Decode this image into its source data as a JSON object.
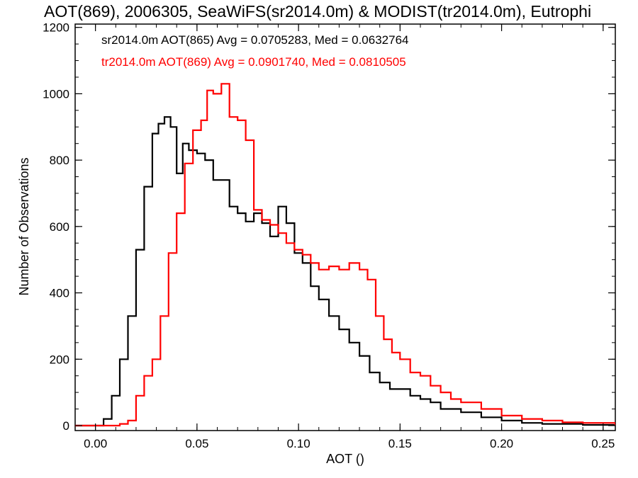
{
  "chart_data": {
    "type": "line",
    "title": "AOT(869), 2006305, SeaWiFS(sr2014.0m) & MODIST(tr2014.0m), Eutrophi",
    "xlabel": "AOT ()",
    "ylabel": "Number of Observations",
    "xlim": [
      -0.01,
      0.256
    ],
    "ylim": [
      -15,
      1210
    ],
    "xticks": [
      "0.00",
      "0.05",
      "0.10",
      "0.15",
      "0.20",
      "0.25"
    ],
    "xtick_values": [
      0.0,
      0.05,
      0.1,
      0.15,
      0.2,
      0.25
    ],
    "yticks": [
      "0",
      "200",
      "400",
      "600",
      "800",
      "1000",
      "1200"
    ],
    "ytick_values": [
      0,
      200,
      400,
      600,
      800,
      1000,
      1200
    ],
    "grid": false,
    "legend_position": "top-left",
    "series": [
      {
        "name": "sr2014.0m AOT(865) Avg = 0.0705283, Med = 0.0632764",
        "color": "#000000",
        "style": "step",
        "x": [
          0.0,
          0.004,
          0.008,
          0.012,
          0.016,
          0.02,
          0.024,
          0.028,
          0.031,
          0.034,
          0.037,
          0.04,
          0.043,
          0.046,
          0.05,
          0.054,
          0.058,
          0.062,
          0.066,
          0.07,
          0.074,
          0.078,
          0.082,
          0.086,
          0.09,
          0.094,
          0.098,
          0.102,
          0.106,
          0.11,
          0.115,
          0.12,
          0.125,
          0.13,
          0.135,
          0.14,
          0.145,
          0.15,
          0.155,
          0.16,
          0.165,
          0.17,
          0.18,
          0.19,
          0.2,
          0.21,
          0.22,
          0.24,
          0.256
        ],
        "y": [
          0,
          20,
          90,
          200,
          330,
          530,
          720,
          880,
          910,
          930,
          900,
          760,
          850,
          830,
          820,
          800,
          740,
          740,
          660,
          640,
          615,
          640,
          610,
          570,
          660,
          610,
          520,
          490,
          420,
          380,
          330,
          290,
          250,
          210,
          160,
          130,
          110,
          110,
          90,
          80,
          70,
          50,
          40,
          25,
          15,
          8,
          5,
          2,
          0
        ]
      },
      {
        "name": "tr2014.0m AOT(869) Avg = 0.0901740, Med = 0.0810505",
        "color": "#ff0000",
        "style": "step",
        "x": [
          0.0,
          0.004,
          0.008,
          0.012,
          0.016,
          0.02,
          0.024,
          0.028,
          0.032,
          0.036,
          0.04,
          0.044,
          0.048,
          0.052,
          0.055,
          0.058,
          0.062,
          0.066,
          0.07,
          0.074,
          0.078,
          0.082,
          0.086,
          0.09,
          0.094,
          0.098,
          0.102,
          0.106,
          0.11,
          0.115,
          0.12,
          0.125,
          0.13,
          0.134,
          0.138,
          0.142,
          0.146,
          0.15,
          0.155,
          0.16,
          0.165,
          0.17,
          0.175,
          0.18,
          0.19,
          0.2,
          0.21,
          0.22,
          0.23,
          0.24,
          0.256
        ],
        "y": [
          0,
          0,
          0,
          5,
          15,
          90,
          150,
          200,
          330,
          520,
          640,
          790,
          890,
          920,
          1010,
          1000,
          1030,
          930,
          920,
          860,
          650,
          620,
          605,
          580,
          550,
          530,
          515,
          490,
          470,
          480,
          470,
          490,
          470,
          440,
          330,
          260,
          220,
          200,
          160,
          150,
          120,
          100,
          80,
          70,
          50,
          30,
          20,
          15,
          10,
          8,
          0
        ]
      }
    ]
  }
}
